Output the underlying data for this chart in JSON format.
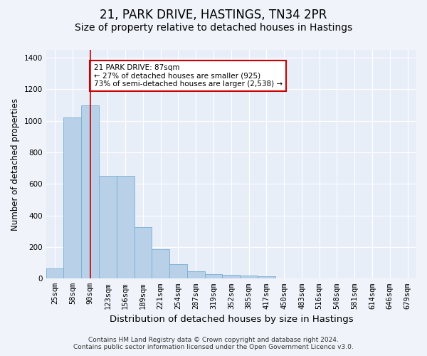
{
  "title": "21, PARK DRIVE, HASTINGS, TN34 2PR",
  "subtitle": "Size of property relative to detached houses in Hastings",
  "xlabel": "Distribution of detached houses by size in Hastings",
  "ylabel": "Number of detached properties",
  "bar_color": "#b8d0e8",
  "bar_edge_color": "#7aafd4",
  "vline_color": "#cc0000",
  "vline_x": 2,
  "annotation_text": "21 PARK DRIVE: 87sqm\n← 27% of detached houses are smaller (925)\n73% of semi-detached houses are larger (2,538) →",
  "annotation_box_color": "#ffffff",
  "annotation_box_edge": "#cc0000",
  "bins": [
    "25sqm",
    "58sqm",
    "90sqm",
    "123sqm",
    "156sqm",
    "189sqm",
    "221sqm",
    "254sqm",
    "287sqm",
    "319sqm",
    "352sqm",
    "385sqm",
    "417sqm",
    "450sqm",
    "483sqm",
    "516sqm",
    "548sqm",
    "581sqm",
    "614sqm",
    "646sqm",
    "679sqm"
  ],
  "values": [
    63,
    1020,
    1100,
    650,
    650,
    325,
    188,
    90,
    47,
    28,
    25,
    20,
    15,
    0,
    0,
    0,
    0,
    0,
    0,
    0,
    0
  ],
  "ylim": [
    0,
    1450
  ],
  "yticks": [
    0,
    200,
    400,
    600,
    800,
    1000,
    1200,
    1400
  ],
  "background_color": "#f0f4fa",
  "plot_bg_color": "#e8eef8",
  "footer": "Contains HM Land Registry data © Crown copyright and database right 2024.\nContains public sector information licensed under the Open Government Licence v3.0.",
  "title_fontsize": 12,
  "subtitle_fontsize": 10,
  "xlabel_fontsize": 9.5,
  "ylabel_fontsize": 8.5,
  "tick_fontsize": 7.5,
  "footer_fontsize": 6.5
}
